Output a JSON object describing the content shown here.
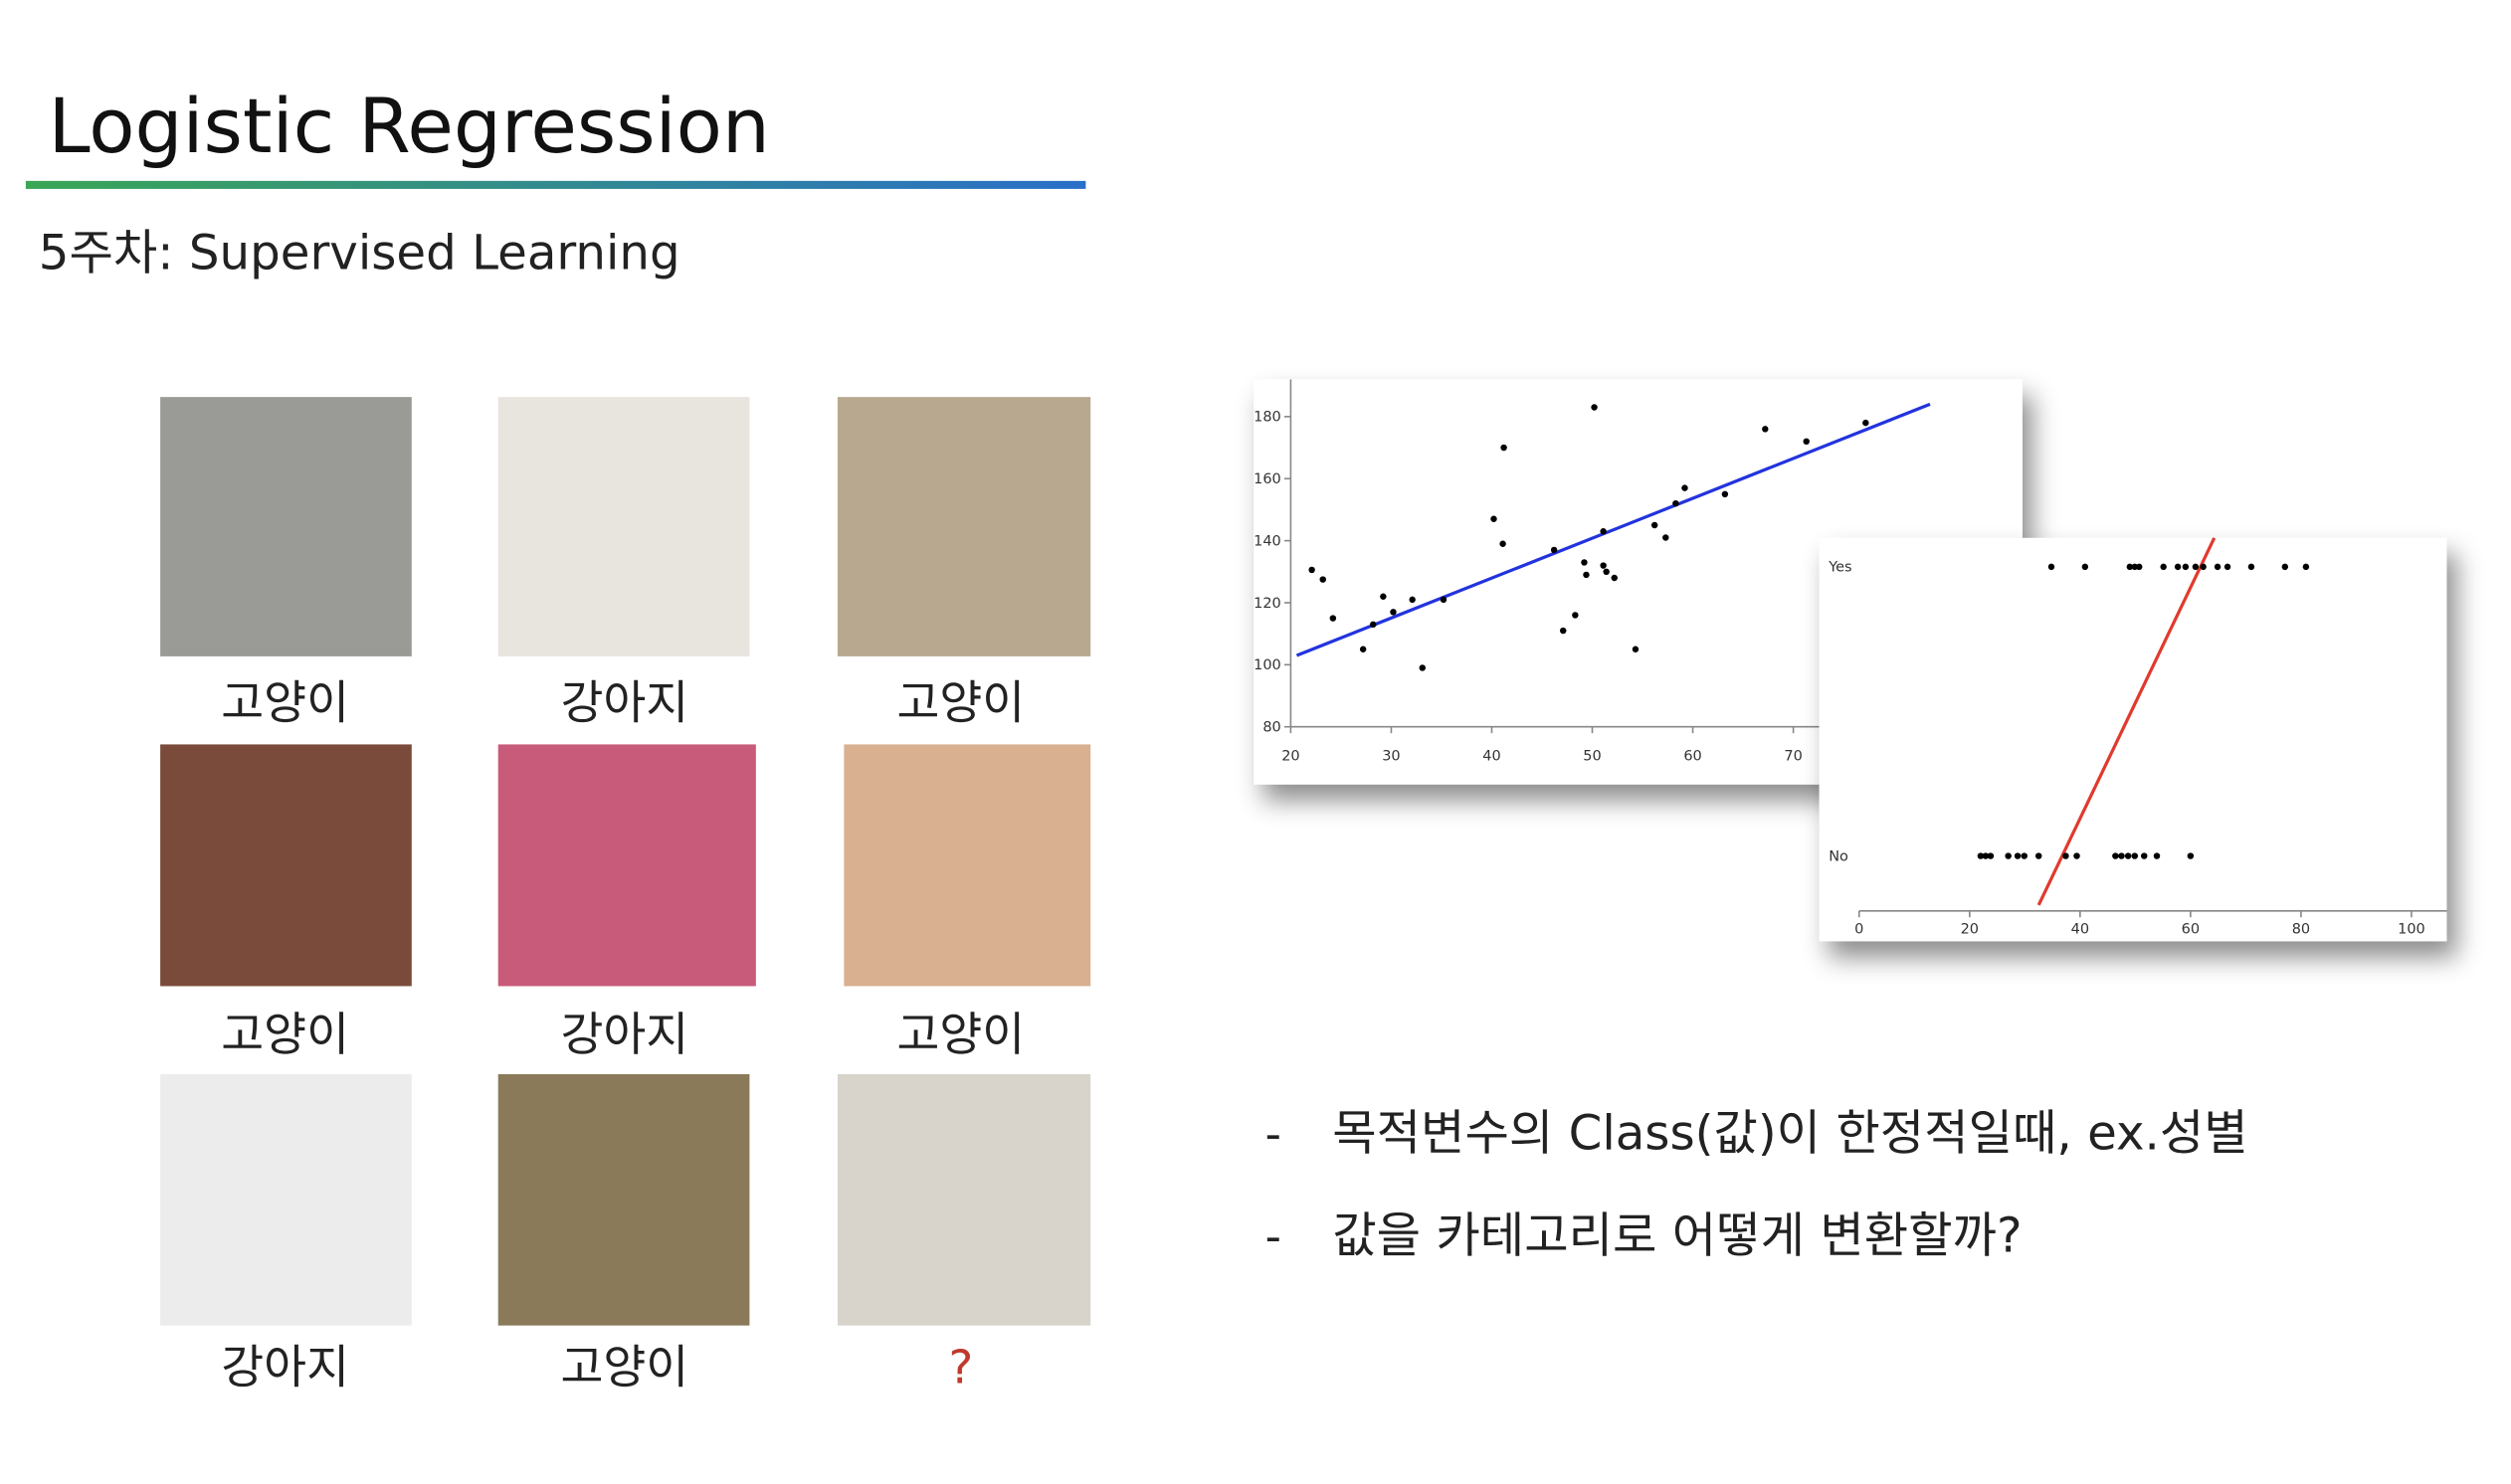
{
  "header": {
    "title": "Logistic Regression",
    "subtitle": "5주차: Supervised Learning"
  },
  "grid": {
    "labels": [
      "고양이",
      "강아지",
      "고양이",
      "고양이",
      "강아지",
      "고양이",
      "강아지",
      "고양이",
      "?"
    ]
  },
  "bullets": [
    "목적변수의 Class(값)이 한정적일때, ex.성별",
    "값을 카테고리로 어떻게 변환할까?"
  ],
  "chart_data": [
    {
      "type": "scatter",
      "color": "#000000",
      "x": [
        22.1,
        23.2,
        24.2,
        27.2,
        28.2,
        29.2,
        30.2,
        32.1,
        33.1,
        35.2,
        40.2,
        41.2,
        41.1,
        46.2,
        47.1,
        48.3,
        49.2,
        49.4,
        50.2,
        51.1,
        51.1,
        51.4,
        52.2,
        54.3,
        56.2,
        57.3,
        58.3,
        59.2,
        63.2,
        67.2,
        71.3,
        77.2
      ],
      "y": [
        130.6,
        127.5,
        115,
        105,
        113,
        122,
        117,
        121,
        99,
        121,
        147,
        170,
        139,
        137,
        111,
        116,
        133,
        129,
        183,
        143,
        132,
        130,
        128,
        105,
        145,
        141,
        152,
        157,
        155,
        176,
        172,
        178
      ],
      "trend_line": {
        "x": [
          20.6,
          83.6
        ],
        "y": [
          103,
          184
        ],
        "color": "#2233dd"
      },
      "xlim": [
        20,
        92.8
      ],
      "ylim": [
        80,
        192
      ],
      "xticks": [
        20,
        30,
        40,
        50,
        60,
        70
      ],
      "yticks": [
        80,
        100,
        120,
        140,
        160,
        180
      ]
    },
    {
      "type": "scatter",
      "color": "#000000",
      "x": [
        34.8,
        40.9,
        49,
        49.9,
        50.7,
        55.1,
        57.7,
        59.1,
        60.9,
        62.3,
        64.9,
        66.7,
        71,
        77.1,
        80.9,
        22,
        22.9,
        23.8,
        27,
        28.7,
        29.9,
        32.5,
        37.4,
        39.4,
        46.4,
        47.5,
        48.7,
        49.9,
        51.6,
        53.9,
        60
      ],
      "y": [
        1,
        1,
        1,
        1,
        1,
        1,
        1,
        1,
        1,
        1,
        1,
        1,
        1,
        1,
        1,
        0,
        0,
        0,
        0,
        0,
        0,
        0,
        0,
        0,
        0,
        0,
        0,
        0,
        0,
        0,
        0
      ],
      "trend_line": {
        "x": [
          32.5,
          64.3
        ],
        "y": [
          -0.17,
          1.1
        ],
        "color": "#e03a2e"
      },
      "xlim": [
        0,
        106.4
      ],
      "ylim": [
        -0.19,
        1.1
      ],
      "xticks": [
        0,
        20,
        40,
        60,
        80,
        100
      ],
      "yticks": [
        {
          "value": 0,
          "label": "No"
        },
        {
          "value": 1,
          "label": "Yes"
        }
      ]
    }
  ]
}
